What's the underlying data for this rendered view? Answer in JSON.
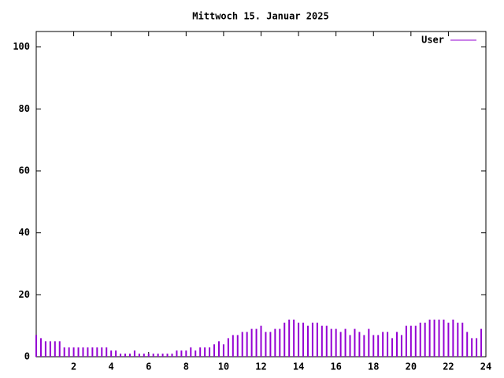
{
  "chart_data": {
    "type": "impulse",
    "title": "Mittwoch 15. Januar 2025",
    "x": [
      0,
      0.25,
      0.5,
      0.75,
      1,
      1.25,
      1.5,
      1.75,
      2,
      2.25,
      2.5,
      2.75,
      3,
      3.25,
      3.5,
      3.75,
      4,
      4.25,
      4.5,
      4.75,
      5,
      5.25,
      5.5,
      5.75,
      6,
      6.25,
      6.5,
      6.75,
      7,
      7.25,
      7.5,
      7.75,
      8,
      8.25,
      8.5,
      8.75,
      9,
      9.25,
      9.5,
      9.75,
      10,
      10.25,
      10.5,
      10.75,
      11,
      11.25,
      11.5,
      11.75,
      12,
      12.25,
      12.5,
      12.75,
      13,
      13.25,
      13.5,
      13.75,
      14,
      14.25,
      14.5,
      14.75,
      15,
      15.25,
      15.5,
      15.75,
      16,
      16.25,
      16.5,
      16.75,
      17,
      17.25,
      17.5,
      17.75,
      18,
      18.25,
      18.5,
      18.75,
      19,
      19.25,
      19.5,
      19.75,
      20,
      20.25,
      20.5,
      20.75,
      21,
      21.25,
      21.5,
      21.75,
      22,
      22.25,
      22.5,
      22.75,
      23,
      23.25,
      23.5,
      23.75
    ],
    "series": [
      {
        "name": "User",
        "color": "#9400d3",
        "values": [
          7,
          6,
          5,
          5,
          5,
          5,
          3,
          3,
          3,
          3,
          3,
          3,
          3,
          3,
          3,
          3,
          2,
          2,
          1,
          1,
          1,
          2,
          1,
          1,
          1,
          1,
          1,
          1,
          1,
          1,
          2,
          2,
          2,
          3,
          2,
          3,
          3,
          3,
          4,
          5,
          4,
          6,
          7,
          7,
          8,
          8,
          9,
          9,
          10,
          8,
          8,
          9,
          9,
          11,
          12,
          12,
          11,
          11,
          10,
          11,
          11,
          10,
          10,
          9,
          9,
          8,
          9,
          7,
          9,
          8,
          7,
          9,
          7,
          7,
          8,
          8,
          6,
          8,
          7,
          10,
          10,
          10,
          11,
          11,
          12,
          12,
          12,
          12,
          11,
          12,
          11,
          11,
          8,
          6,
          6,
          9
        ]
      }
    ],
    "xlim": [
      0,
      24
    ],
    "xticks": [
      2,
      4,
      6,
      8,
      10,
      12,
      14,
      16,
      18,
      20,
      22,
      24
    ],
    "ylim": [
      0,
      105
    ],
    "yticks": [
      0,
      20,
      40,
      60,
      80,
      100
    ],
    "legend": "top-right"
  }
}
